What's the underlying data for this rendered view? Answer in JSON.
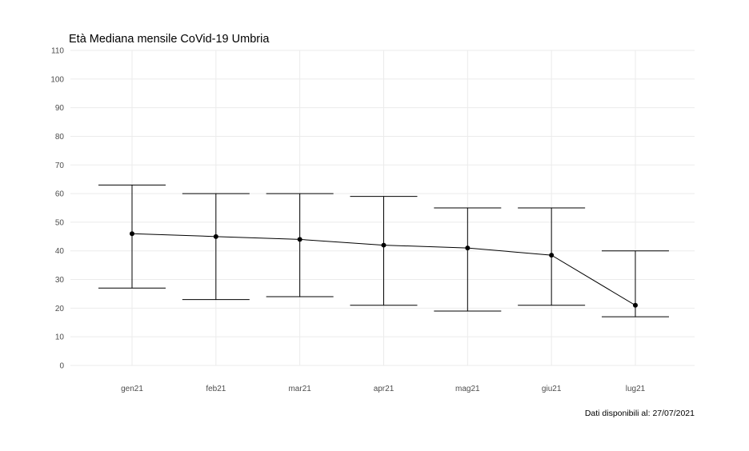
{
  "chart_data": {
    "type": "line",
    "title": "Età Mediana mensile CoVid-19 Umbria",
    "caption": "Dati disponibili al: 27/07/2021",
    "xlabel": "",
    "ylabel": "",
    "categories": [
      "gen21",
      "feb21",
      "mar21",
      "apr21",
      "mag21",
      "giu21",
      "lug21"
    ],
    "series": [
      {
        "values": [
          46,
          45,
          44,
          42,
          41,
          38.5,
          21
        ],
        "lower": [
          27,
          23,
          24,
          21,
          19,
          21,
          17
        ],
        "upper": [
          63,
          60,
          60,
          59,
          55,
          55,
          40
        ]
      }
    ],
    "ylim": [
      0,
      110
    ],
    "yticks": [
      "0",
      "10",
      "20",
      "30",
      "40",
      "50",
      "60",
      "70",
      "80",
      "90",
      "100",
      "110"
    ],
    "grid": true,
    "legend": "none",
    "colors": {
      "line": "#000000",
      "grid": "#ebebeb",
      "tick_text": "#4d4d4d"
    }
  }
}
